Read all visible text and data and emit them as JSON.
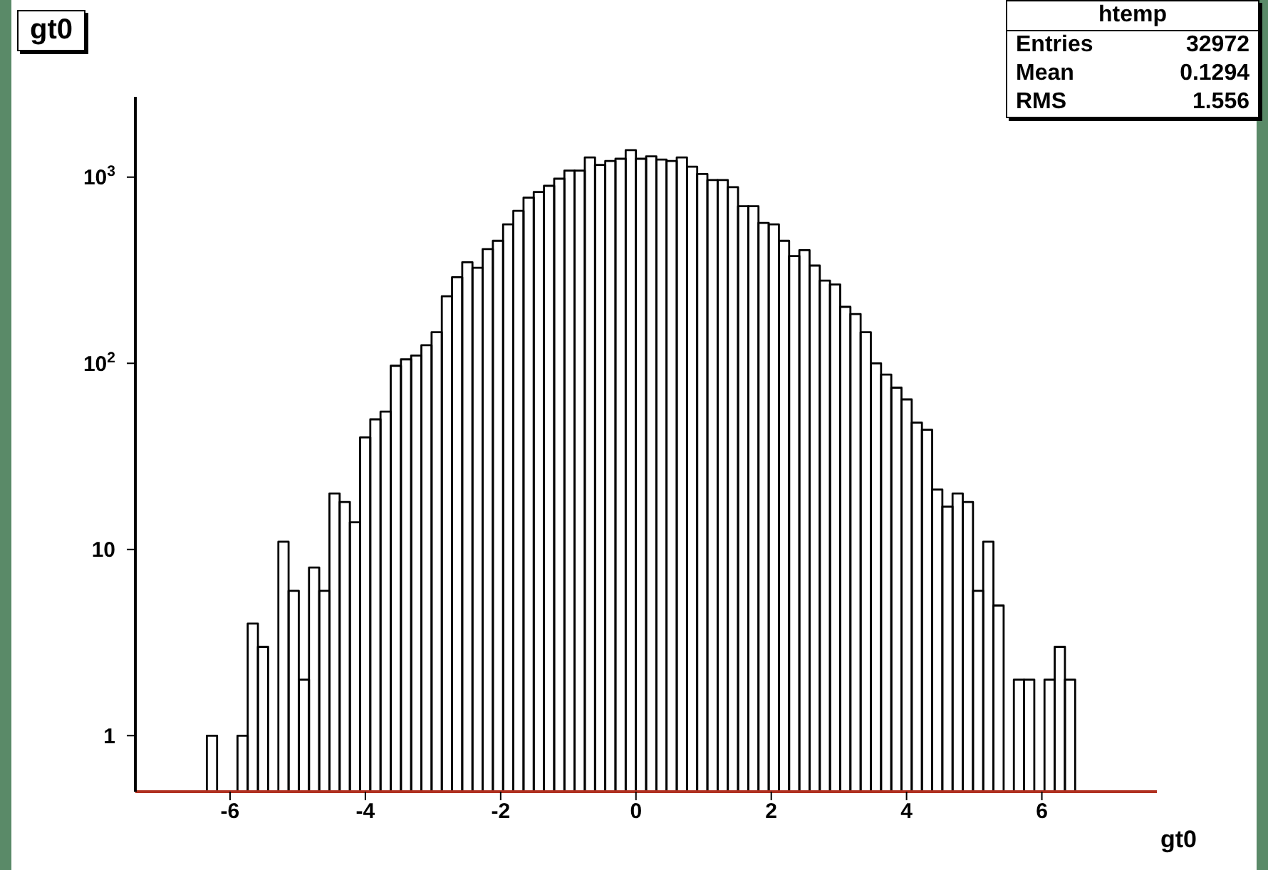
{
  "chart_data": {
    "type": "histogram",
    "title": "gt0",
    "xlabel": "gt0",
    "annotations": [
      "htemp",
      "Entries",
      "32972",
      "Mean",
      "0.1294",
      "RMS",
      "1.556"
    ],
    "bins": [
      -7.4,
      -7.249,
      -7.098,
      -6.947,
      -6.796,
      -6.645,
      -6.494,
      -6.343,
      -6.192,
      -6.041,
      -5.89,
      -5.739,
      -5.588,
      -5.437,
      -5.286,
      -5.135,
      -4.984,
      -4.833,
      -4.682,
      -4.531,
      -4.38,
      -4.229,
      -4.078,
      -3.927,
      -3.776,
      -3.625,
      -3.474,
      -3.323,
      -3.172,
      -3.021,
      -2.87,
      -2.719,
      -2.568,
      -2.417,
      -2.266,
      -2.115,
      -1.964,
      -1.813,
      -1.662,
      -1.511,
      -1.36,
      -1.209,
      -1.058,
      -0.907,
      -0.756,
      -0.605,
      -0.454,
      -0.303,
      -0.152,
      -0.001,
      0.15,
      0.301,
      0.452,
      0.603,
      0.754,
      0.905,
      1.056,
      1.207,
      1.358,
      1.509,
      1.66,
      1.811,
      1.962,
      2.113,
      2.264,
      2.415,
      2.566,
      2.717,
      2.868,
      3.019,
      3.17,
      3.321,
      3.472,
      3.623,
      3.774,
      3.925,
      4.076,
      4.227,
      4.378,
      4.529,
      4.68,
      4.831,
      4.982,
      5.133,
      5.284,
      5.435,
      5.586,
      5.737,
      5.888,
      6.039,
      6.19,
      6.341,
      6.492,
      6.643,
      6.794,
      6.945,
      7.096,
      7.247,
      7.398,
      7.549,
      7.7
    ],
    "values": [
      null,
      null,
      null,
      null,
      null,
      null,
      null,
      1,
      null,
      null,
      1,
      4,
      3,
      null,
      11,
      6,
      2,
      8,
      6,
      20,
      18,
      14,
      40,
      50,
      55,
      97,
      105,
      110,
      125,
      147,
      229,
      290,
      349,
      326,
      411,
      455,
      558,
      659,
      776,
      833,
      898,
      981,
      1084,
      1084,
      1277,
      1164,
      1220,
      1255,
      1396,
      1255,
      1294,
      1242,
      1220,
      1277,
      1137,
      1040,
      964,
      964,
      883,
      698,
      698,
      568,
      558,
      455,
      377,
      405,
      335,
      278,
      265,
      201,
      184,
      147,
      100,
      87,
      74,
      64,
      48,
      44,
      21,
      17,
      20,
      18,
      6,
      11,
      5,
      null,
      2,
      2,
      null,
      2,
      3,
      2,
      null,
      null,
      null,
      null,
      null,
      null,
      null,
      null
    ],
    "color": "#000000",
    "xlim": [
      -7.4,
      7.7
    ],
    "xticks": [
      -6,
      -4,
      -2,
      0,
      2,
      4,
      6
    ],
    "ylim": [
      0.5,
      2700
    ],
    "yticks": [
      1,
      10,
      {
        "value": 100,
        "label": "10$^{2}$"
      },
      {
        "value": 1000,
        "label": "10$^{3}$"
      }
    ],
    "log": true
  }
}
